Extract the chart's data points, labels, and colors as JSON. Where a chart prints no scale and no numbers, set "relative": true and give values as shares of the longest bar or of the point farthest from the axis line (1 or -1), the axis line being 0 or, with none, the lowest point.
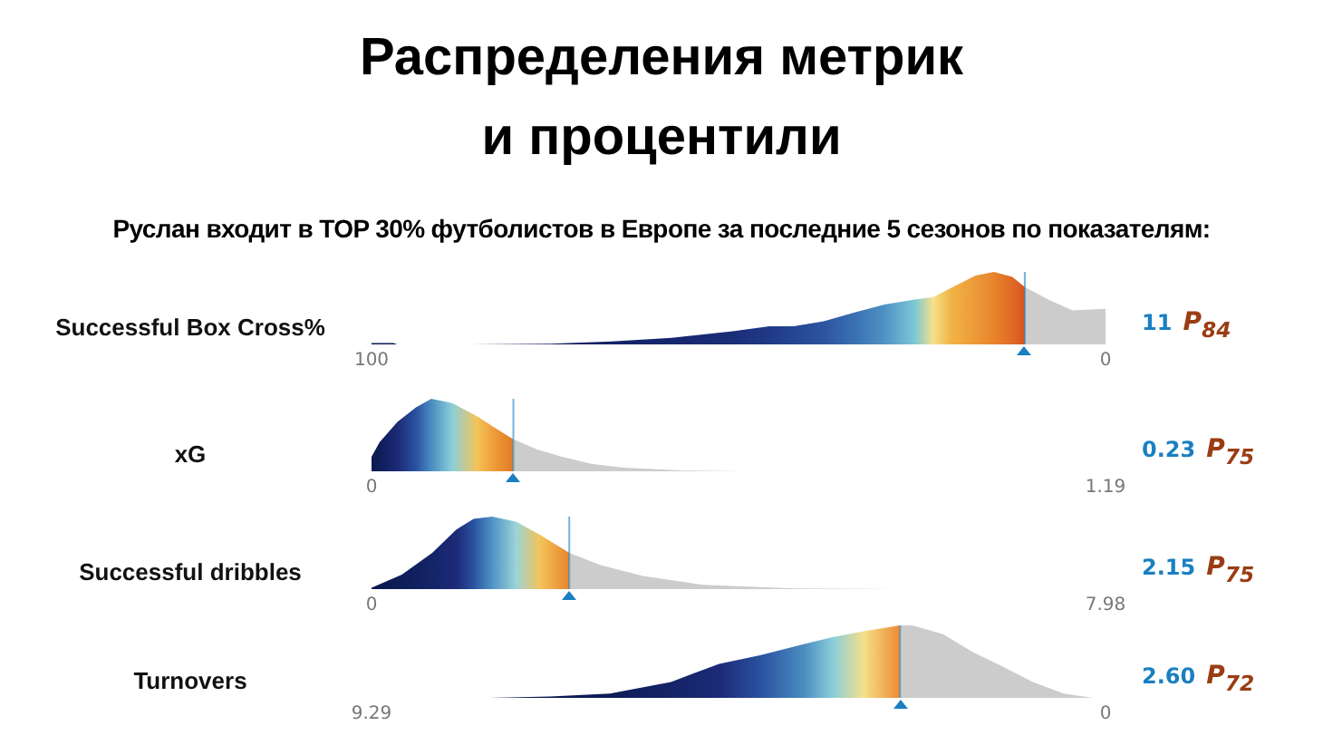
{
  "chart_data": [
    {
      "type": "area",
      "title": "Распределения метрик\nи процентили",
      "subtitle": "Руслан входит в TOP 30% футболистов в Европе за последние 5 сезонов по показателям:",
      "ylabel": "Successful Box Cross%",
      "relative": true,
      "xlim": [
        100,
        0
      ],
      "xticks": [
        100,
        0
      ],
      "series": [
        {
          "colors": [
            "#0b1a4f",
            "#0b1a4f",
            "#0b1a4f",
            "#0d1c55",
            "#101f5e",
            "#132366",
            "#16276e",
            "#1b2d78",
            "#203a86",
            "#254591",
            "#2c55a0",
            "#3a70b2",
            "#4f92c4",
            "#7cc8d6",
            "#f5e08a",
            "#f2b345",
            "#ec9a38",
            "#e8832c",
            "#e06a24",
            "#d9541e"
          ],
          "x": [
            100,
            97,
            96.5,
            86.4,
            75.6,
            67.3,
            59.1,
            50.8,
            45.8,
            42.5,
            38.4,
            34.2,
            30.1,
            26,
            23.5,
            21,
            17.7,
            15.2,
            12.7,
            11
          ],
          "values": [
            0.02,
            0.02,
            0,
            0,
            0.01,
            0.04,
            0.09,
            0.18,
            0.25,
            0.25,
            0.32,
            0.44,
            0.55,
            0.62,
            0.65,
            0.78,
            0.95,
            1,
            0.93,
            0.79
          ]
        },
        {
          "color": "#cccccc",
          "x": [
            11,
            7.8,
            4.5,
            2,
            0
          ],
          "values": [
            0.79,
            0.62,
            0.47,
            0.48,
            0.49
          ]
        }
      ],
      "ref_lines": [
        {
          "axis": "x",
          "value": 11,
          "label": "11",
          "color": "#1a7fc1"
        }
      ],
      "annotations": [
        "P$_{84}$"
      ]
    },
    {
      "type": "area",
      "ylabel": "xG",
      "relative": true,
      "xlim": [
        0,
        1.19
      ],
      "xticks": [
        0,
        1.19
      ],
      "series": [
        {
          "colors": [
            "#0b1a4f",
            "#0e1d58",
            "#1c2a78",
            "#2a52a0",
            "#4a8cc0",
            "#8ccfd8",
            "#f3c45a",
            "#ee9a38",
            "#e07a2a"
          ],
          "x": [
            0,
            0.013,
            0.042,
            0.072,
            0.097,
            0.131,
            0.171,
            0.2,
            0.23
          ],
          "values": [
            0.2,
            0.4,
            0.68,
            0.88,
            1,
            0.94,
            0.76,
            0.6,
            0.44
          ]
        },
        {
          "color": "#cccccc",
          "x": [
            0.23,
            0.269,
            0.309,
            0.358,
            0.408,
            0.506,
            0.605
          ],
          "values": [
            0.44,
            0.3,
            0.2,
            0.1,
            0.05,
            0.01,
            0
          ]
        }
      ],
      "ref_lines": [
        {
          "axis": "x",
          "value": 0.23,
          "label": "0.23",
          "color": "#1a7fc1"
        }
      ],
      "annotations": [
        "P$_{75}$"
      ]
    },
    {
      "type": "area",
      "ylabel": "Successful dribbles",
      "relative": true,
      "xlim": [
        0,
        7.98
      ],
      "xticks": [
        0,
        7.98
      ],
      "series": [
        {
          "colors": [
            "#0b1a4f",
            "#0e1d58",
            "#142466",
            "#1c2a78",
            "#2a52a0",
            "#4f92c4",
            "#9ad3d8",
            "#f3c45a",
            "#e8842c"
          ],
          "x": [
            0,
            0.33,
            0.66,
            0.92,
            1.11,
            1.31,
            1.57,
            1.83,
            2.15
          ],
          "values": [
            0.02,
            0.2,
            0.5,
            0.82,
            0.97,
            1,
            0.93,
            0.75,
            0.5
          ]
        },
        {
          "color": "#cccccc",
          "x": [
            2.15,
            2.49,
            2.95,
            3.6,
            4.59,
            5.76
          ],
          "values": [
            0.5,
            0.33,
            0.18,
            0.06,
            0.01,
            0
          ]
        }
      ],
      "ref_lines": [
        {
          "axis": "x",
          "value": 2.15,
          "label": "2.15",
          "color": "#1a7fc1"
        }
      ],
      "annotations": [
        "P$_{75}$"
      ]
    },
    {
      "type": "area",
      "ylabel": "Turnovers",
      "relative": true,
      "xlim": [
        9.29,
        0
      ],
      "xticks": [
        9.29,
        0
      ],
      "series": [
        {
          "colors": [
            "#0b1a4f",
            "#0b1a4f",
            "#0e1d58",
            "#142466",
            "#1c2a78",
            "#2a52a0",
            "#4a8cc0",
            "#8ccfd8",
            "#f5e08a",
            "#ec8a30"
          ],
          "x": [
            7.8,
            7.03,
            6.27,
            5.5,
            4.89,
            4.36,
            3.82,
            3.44,
            3.06,
            2.6
          ],
          "values": [
            0,
            0.02,
            0.06,
            0.22,
            0.47,
            0.59,
            0.74,
            0.84,
            0.92,
            1
          ]
        },
        {
          "color": "#cccccc",
          "x": [
            2.6,
            2.45,
            2.06,
            1.68,
            1.3,
            0.92,
            0.53,
            0.16
          ],
          "values": [
            1,
            1,
            0.88,
            0.63,
            0.43,
            0.22,
            0.06,
            0
          ]
        }
      ],
      "ref_lines": [
        {
          "axis": "x",
          "value": 2.6,
          "label": "2.60",
          "color": "#1a7fc1"
        }
      ],
      "annotations": [
        "P$_{72}$"
      ]
    }
  ]
}
